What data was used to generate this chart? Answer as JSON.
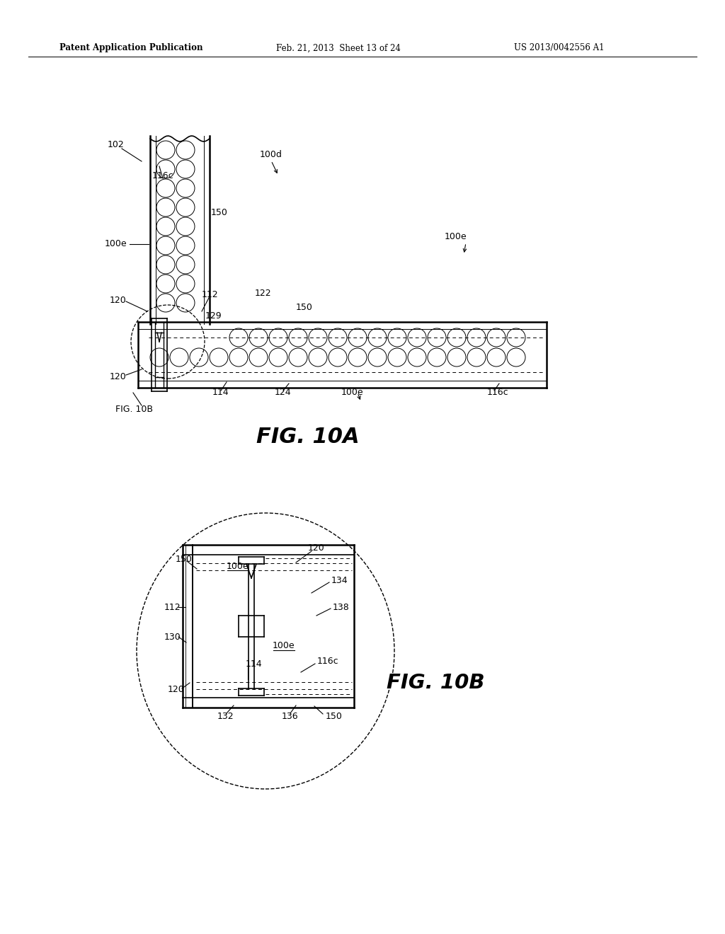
{
  "bg_color": "#ffffff",
  "header_left": "Patent Application Publication",
  "header_mid": "Feb. 21, 2013  Sheet 13 of 24",
  "header_right": "US 2013/0042556 A1",
  "fig10a_label": "FIG. 10A",
  "fig10b_label": "FIG. 10B",
  "line_color": "#000000",
  "text_color": "#000000",
  "lw_thick": 1.8,
  "lw_med": 1.2,
  "lw_thin": 0.8
}
